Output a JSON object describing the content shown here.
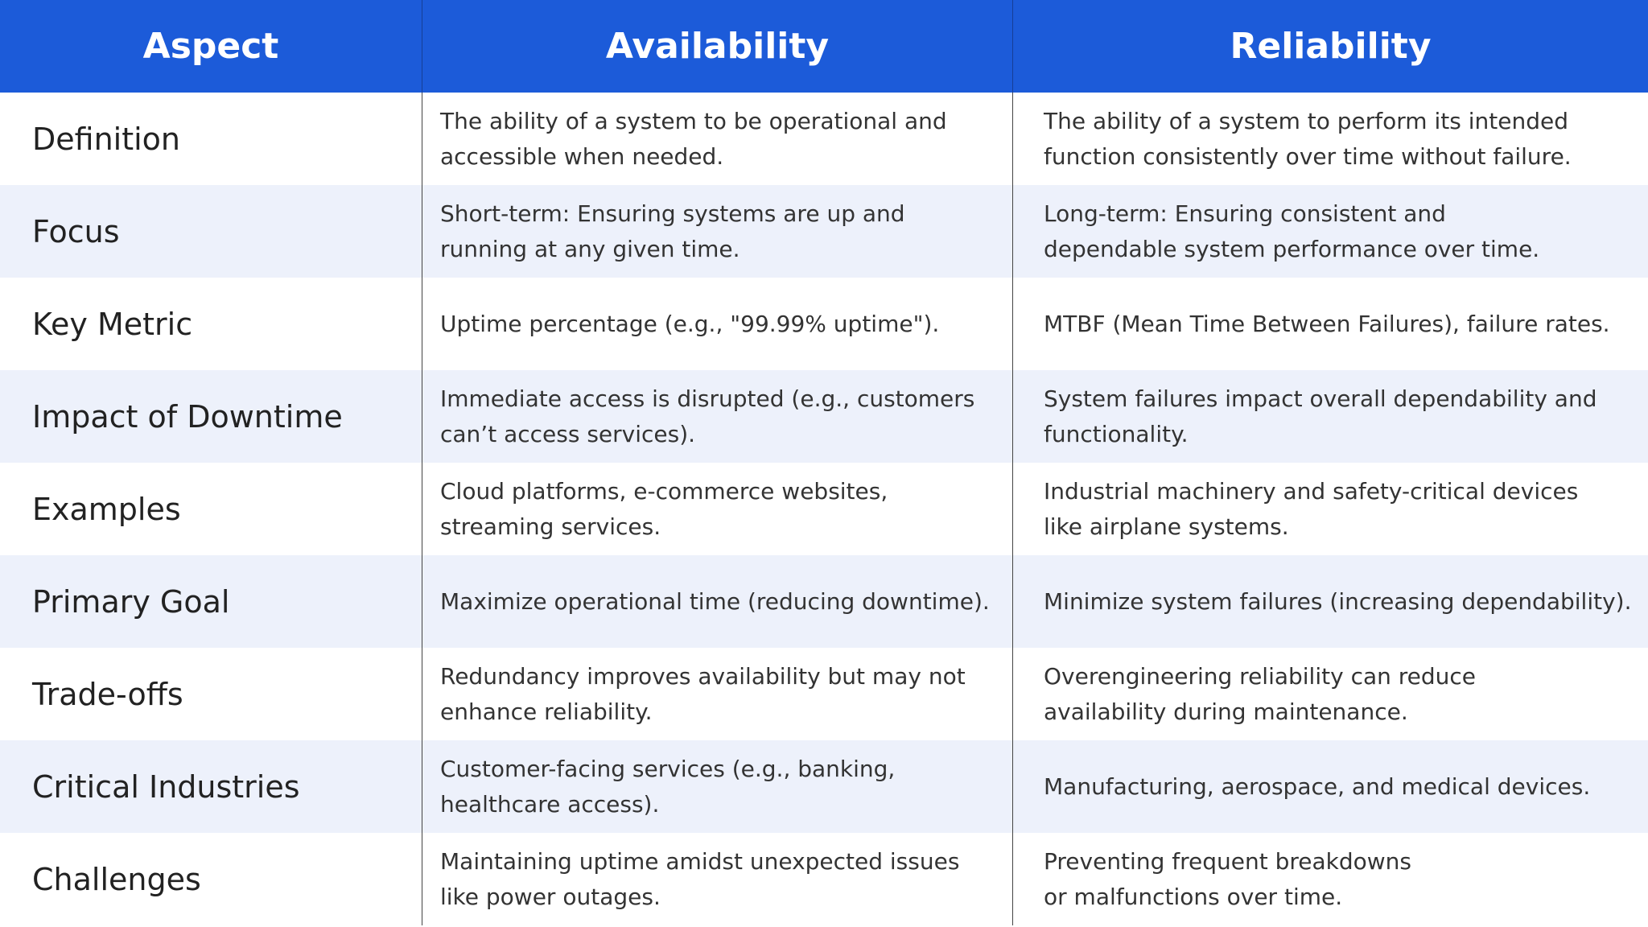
{
  "table": {
    "header": [
      "Aspect",
      "Availability",
      "Reliability"
    ],
    "rows": [
      [
        "Definition",
        [
          "The ability of a system to be operational and",
          "accessible when needed."
        ],
        [
          "The ability of a system to perform its intended",
          "function consistently over time without failure."
        ]
      ],
      [
        "Focus",
        [
          "Short-term: Ensuring systems are up and",
          "running at any given time."
        ],
        [
          "Long-term: Ensuring consistent and",
          "dependable system performance over time."
        ]
      ],
      [
        "Key Metric",
        [
          "Uptime percentage (e.g., \"99.99% uptime\")."
        ],
        [
          "MTBF (Mean Time Between Failures), failure rates."
        ]
      ],
      [
        "Impact of Downtime",
        [
          "Immediate access is disrupted (e.g., customers",
          "can’t access services)."
        ],
        [
          "System failures impact overall dependability and",
          "functionality."
        ]
      ],
      [
        "Examples",
        [
          "Cloud platforms, e-commerce websites,",
          "streaming services."
        ],
        [
          "Industrial machinery and safety-critical devices",
          "like airplane systems."
        ]
      ],
      [
        "Primary Goal",
        [
          "Maximize operational time (reducing downtime)."
        ],
        [
          "Minimize system failures (increasing dependability)."
        ]
      ],
      [
        "Trade-offs",
        [
          "Redundancy improves availability but may not",
          "enhance reliability."
        ],
        [
          "Overengineering reliability can reduce",
          "availability during maintenance."
        ]
      ],
      [
        "Critical Industries",
        [
          "Customer-facing services (e.g., banking,",
          "healthcare access)."
        ],
        [
          "Manufacturing, aerospace, and medical devices."
        ]
      ],
      [
        "Challenges",
        [
          "Maintaining uptime amidst unexpected issues",
          "like power outages."
        ],
        [
          "Preventing frequent breakdowns",
          "or malfunctions over time."
        ]
      ]
    ]
  }
}
